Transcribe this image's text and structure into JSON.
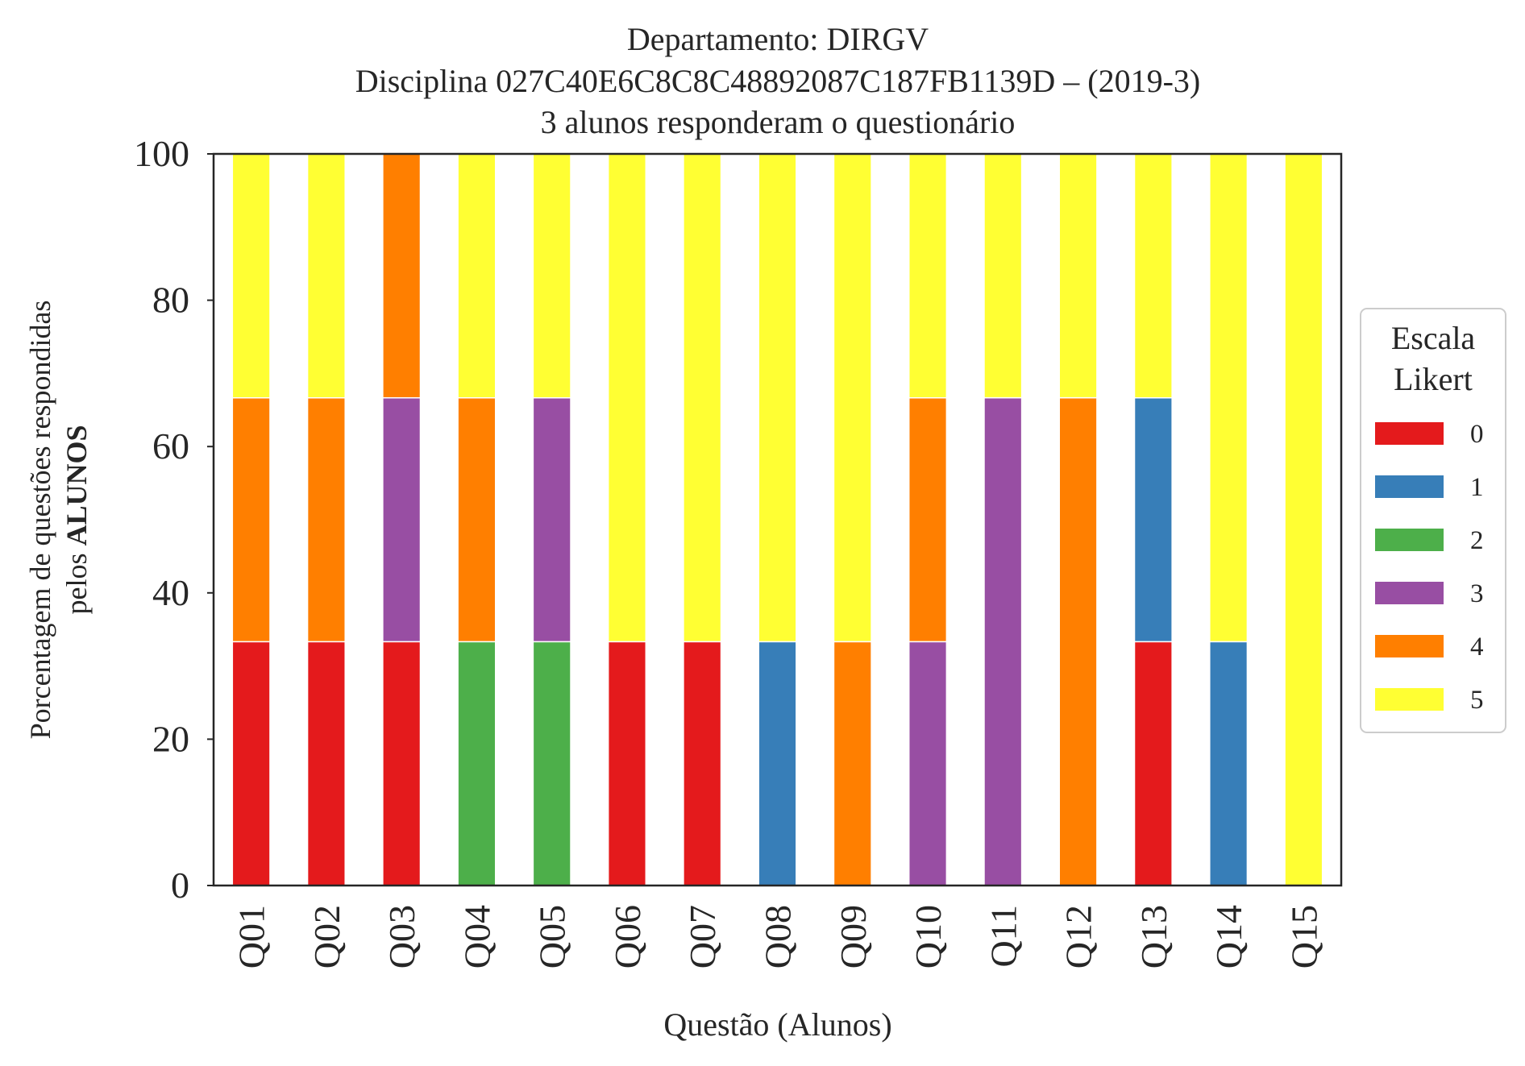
{
  "chart_data": {
    "type": "bar",
    "stacked": true,
    "title_lines": [
      "Departamento: DIRGV",
      "Disciplina 027C40E6C8C8C48892087C187FB1139D – (2019-3)",
      "3 alunos responderam o questionário"
    ],
    "xlabel": "Questão (Alunos)",
    "ylabel_line1": "Porcentagem de questões respondidas",
    "ylabel_line2_prefix": "pelos ",
    "ylabel_line2_bold": "ALUNOS",
    "ylim": [
      0,
      100
    ],
    "yticks": [
      "0",
      "20",
      "40",
      "60",
      "80",
      "100"
    ],
    "grid": false,
    "legend_placement": "right",
    "legend_title_lines": [
      "Escala",
      "Likert"
    ],
    "categories": [
      "Q01",
      "Q02",
      "Q03",
      "Q04",
      "Q05",
      "Q06",
      "Q07",
      "Q08",
      "Q09",
      "Q10",
      "Q11",
      "Q12",
      "Q13",
      "Q14",
      "Q15"
    ],
    "series": [
      {
        "name": "0",
        "color": "#e41a1c",
        "values": [
          33.33,
          33.33,
          33.33,
          0,
          0,
          33.33,
          33.33,
          0,
          0,
          0,
          0,
          0,
          33.33,
          0,
          0
        ]
      },
      {
        "name": "1",
        "color": "#377eb8",
        "values": [
          0,
          0,
          0,
          0,
          0,
          0,
          0,
          33.33,
          0,
          0,
          0,
          0,
          33.33,
          33.33,
          0
        ]
      },
      {
        "name": "2",
        "color": "#4daf4a",
        "values": [
          0,
          0,
          0,
          33.33,
          33.33,
          0,
          0,
          0,
          0,
          0,
          0,
          0,
          0,
          0,
          0
        ]
      },
      {
        "name": "3",
        "color": "#984ea3",
        "values": [
          0,
          0,
          33.33,
          0,
          33.33,
          0,
          0,
          0,
          0,
          33.33,
          66.67,
          0,
          0,
          0,
          0
        ]
      },
      {
        "name": "4",
        "color": "#ff7f00",
        "values": [
          33.33,
          33.33,
          33.33,
          33.33,
          0,
          0,
          0,
          0,
          33.33,
          33.33,
          0,
          66.67,
          0,
          0,
          0
        ]
      },
      {
        "name": "5",
        "color": "#ffff33",
        "values": [
          33.33,
          33.33,
          0,
          33.33,
          33.33,
          66.67,
          66.67,
          66.67,
          66.67,
          33.33,
          33.33,
          33.33,
          33.33,
          66.67,
          100
        ]
      }
    ]
  }
}
